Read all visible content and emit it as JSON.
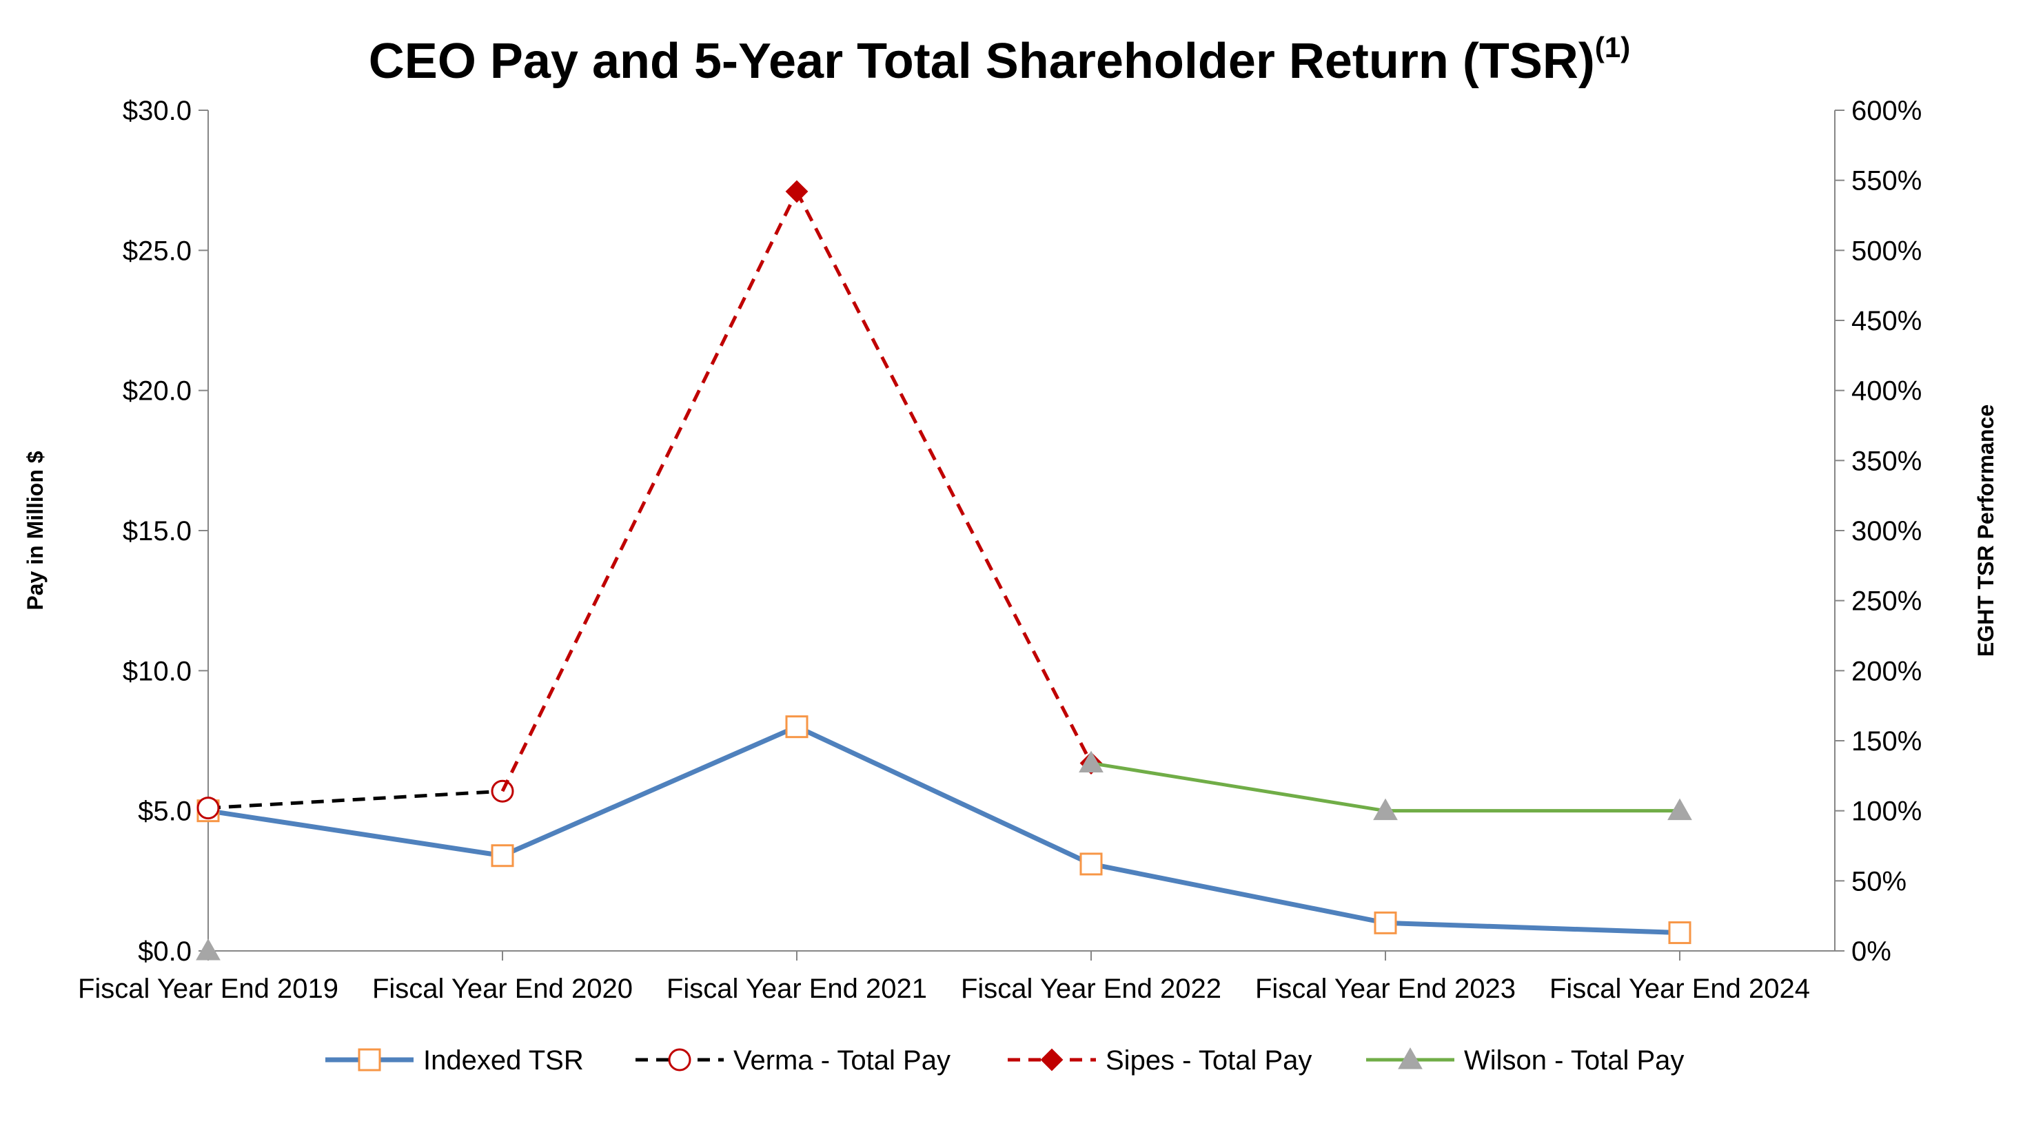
{
  "chart_data": {
    "type": "line",
    "title": "CEO Pay and 5-Year Total Shareholder Return (TSR)",
    "title_superscript": "(1)",
    "categories": [
      "Fiscal Year End 2019",
      "Fiscal Year End 2020",
      "Fiscal Year End 2021",
      "Fiscal Year End 2022",
      "Fiscal Year End 2023",
      "Fiscal Year End 2024"
    ],
    "ylabel_left": "Pay in Million $",
    "ylabel_right": "EGHT TSR Performance",
    "ylim_left": [
      0,
      30
    ],
    "ylim_right": [
      0,
      600
    ],
    "yticks_left": [
      "$0.0",
      "$5.0",
      "$10.0",
      "$15.0",
      "$20.0",
      "$25.0",
      "$30.0"
    ],
    "yticks_right": [
      "0%",
      "50%",
      "100%",
      "150%",
      "200%",
      "250%",
      "300%",
      "350%",
      "400%",
      "450%",
      "500%",
      "550%",
      "600%"
    ],
    "legend_position": "bottom",
    "series": [
      {
        "name": "Indexed TSR",
        "axis": "right",
        "color": "#4F81BD",
        "marker_color": "#F79646",
        "marker": "square-open",
        "style": "solid",
        "values": [
          100,
          68,
          160,
          62,
          20,
          13
        ]
      },
      {
        "name": "Verma - Total Pay",
        "axis": "left",
        "color": "#000000",
        "marker_color": "#C00000",
        "marker": "circle-open",
        "style": "dashed",
        "values": [
          5.1,
          5.7,
          null,
          null,
          null,
          null
        ]
      },
      {
        "name": "Sipes - Total Pay",
        "axis": "left",
        "color": "#C00000",
        "marker_color": "#C00000",
        "marker": "diamond",
        "style": "dashed",
        "values": [
          null,
          5.7,
          27.1,
          6.7,
          null,
          null
        ]
      },
      {
        "name": "Wilson - Total Pay",
        "axis": "left",
        "color": "#70AD47",
        "marker_color": "#A6A6A6",
        "marker": "triangle",
        "style": "solid",
        "values": [
          0,
          null,
          null,
          6.7,
          5.0,
          5.0
        ]
      }
    ]
  }
}
